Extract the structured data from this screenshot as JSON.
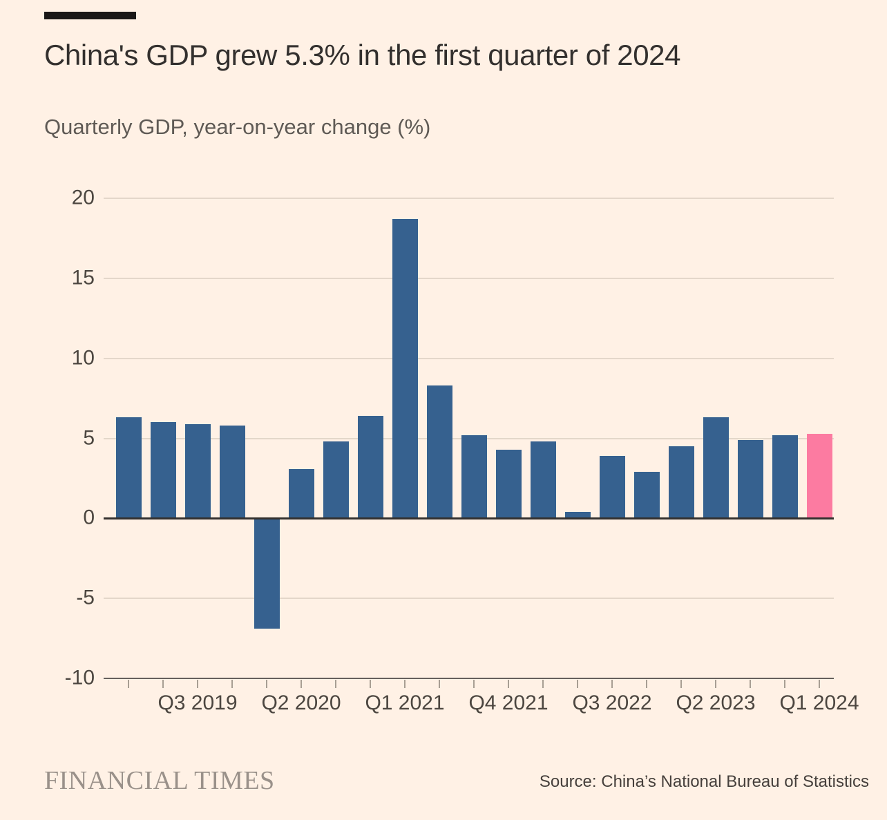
{
  "header": {
    "title": "China's GDP grew 5.3% in the first quarter of 2024",
    "subtitle": "Quarterly GDP, year-on-year change (%)"
  },
  "footer": {
    "logo": "FINANCIAL TIMES",
    "source": "Source: China’s National Bureau of Statistics"
  },
  "chart_data": {
    "type": "bar",
    "title": "China's GDP grew 5.3% in the first quarter of 2024",
    "subtitle": "Quarterly GDP, year-on-year change (%)",
    "unit": "%",
    "categories": [
      "Q1 2019",
      "Q2 2019",
      "Q3 2019",
      "Q4 2019",
      "Q1 2020",
      "Q2 2020",
      "Q3 2020",
      "Q4 2020",
      "Q1 2021",
      "Q2 2021",
      "Q3 2021",
      "Q4 2021",
      "Q1 2022",
      "Q2 2022",
      "Q3 2022",
      "Q4 2022",
      "Q1 2023",
      "Q2 2023",
      "Q3 2023",
      "Q4 2023",
      "Q1 2024"
    ],
    "values": [
      6.3,
      6.0,
      5.9,
      5.8,
      -6.9,
      3.1,
      4.8,
      6.4,
      18.7,
      8.3,
      5.2,
      4.3,
      4.8,
      0.4,
      3.9,
      2.9,
      4.5,
      6.3,
      4.9,
      5.2,
      5.3
    ],
    "highlight_index": 20,
    "highlight_category": "Q1 2024",
    "highlight_value": 5.3,
    "x_tick_labels": [
      "Q3 2019",
      "Q2 2020",
      "Q1 2021",
      "Q4 2021",
      "Q3 2022",
      "Q2 2023",
      "Q1 2024"
    ],
    "y_ticks": [
      20,
      15,
      10,
      5,
      0,
      -5,
      -10
    ],
    "ylim": [
      -10,
      20
    ],
    "grid": true,
    "legend": false,
    "colors": {
      "bar": "#36618f",
      "highlight": "#fc7ba1",
      "background": "#fff1e5",
      "gridline": "#e4d7ca",
      "zero_line": "#33302e",
      "axis_line": "#66605c",
      "title_text": "#33302e",
      "subtitle_text": "#5f5a55",
      "tick_label": "#4c4640",
      "logo_text": "#9a918a"
    }
  }
}
